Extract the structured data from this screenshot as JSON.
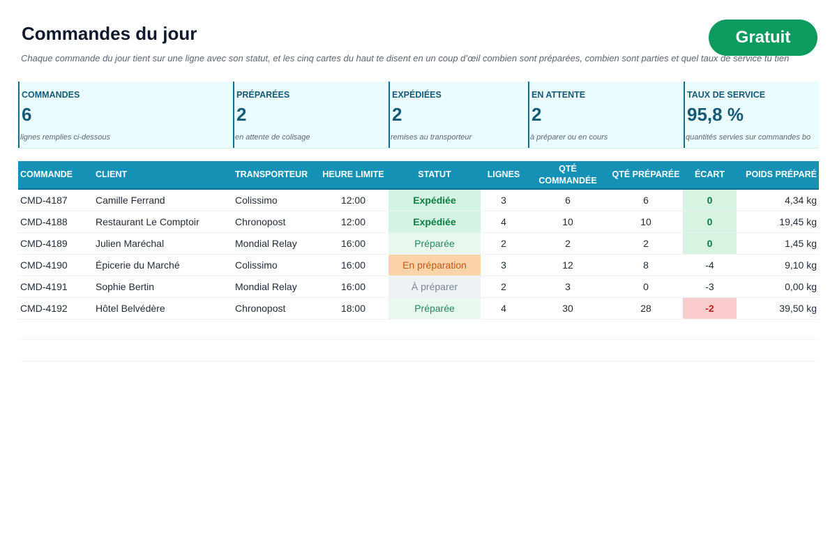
{
  "header": {
    "title": "Commandes du jour",
    "subtitle": "Chaque commande du jour tient sur une ligne avec son statut, et les cinq cartes du haut te disent en un coup d’œil combien sont préparées, combien sont parties et quel taux de service tu tien",
    "badge": "Gratuit"
  },
  "cards": [
    {
      "label": "COMMANDES",
      "value": "6",
      "note": "lignes remplies ci-dessous"
    },
    {
      "label": "PRÉPARÉES",
      "value": "2",
      "note": "en attente de colisage"
    },
    {
      "label": "EXPÉDIÉES",
      "value": "2",
      "note": "remises au transporteur"
    },
    {
      "label": "EN ATTENTE",
      "value": "2",
      "note": "à préparer ou en cours"
    },
    {
      "label": "TAUX DE SERVICE",
      "value": "95,8 %",
      "note": "quantités servies sur commandes bo"
    }
  ],
  "table": {
    "headers": [
      "COMMANDE",
      "CLIENT",
      "TRANSPORTEUR",
      "HEURE LIMITE",
      "STATUT",
      "LIGNES",
      "QTÉ COMMANDÉE",
      "QTÉ PRÉPARÉE",
      "ÉCART",
      "POIDS PRÉPARÉ"
    ],
    "rows": [
      {
        "commande": "CMD-4187",
        "client": "Camille Ferrand",
        "transporteur": "Colissimo",
        "heure": "12:00",
        "statut": "Expédiée",
        "lignes": "3",
        "qte_cmd": "6",
        "qte_prep": "6",
        "ecart": "0",
        "poids": "4,34 kg"
      },
      {
        "commande": "CMD-4188",
        "client": "Restaurant Le Comptoir",
        "transporteur": "Chronopost",
        "heure": "12:00",
        "statut": "Expédiée",
        "lignes": "4",
        "qte_cmd": "10",
        "qte_prep": "10",
        "ecart": "0",
        "poids": "19,45 kg"
      },
      {
        "commande": "CMD-4189",
        "client": "Julien Maréchal",
        "transporteur": "Mondial Relay",
        "heure": "16:00",
        "statut": "Préparée",
        "lignes": "2",
        "qte_cmd": "2",
        "qte_prep": "2",
        "ecart": "0",
        "poids": "1,45 kg"
      },
      {
        "commande": "CMD-4190",
        "client": "Épicerie du Marché",
        "transporteur": "Colissimo",
        "heure": "16:00",
        "statut": "En préparation",
        "lignes": "3",
        "qte_cmd": "12",
        "qte_prep": "8",
        "ecart": "-4",
        "poids": "9,10 kg"
      },
      {
        "commande": "CMD-4191",
        "client": "Sophie Bertin",
        "transporteur": "Mondial Relay",
        "heure": "16:00",
        "statut": "À préparer",
        "lignes": "2",
        "qte_cmd": "3",
        "qte_prep": "0",
        "ecart": "-3",
        "poids": "0,00 kg"
      },
      {
        "commande": "CMD-4192",
        "client": "Hôtel Belvédère",
        "transporteur": "Chronopost",
        "heure": "18:00",
        "statut": "Préparée",
        "lignes": "4",
        "qte_cmd": "30",
        "qte_prep": "28",
        "ecart": "-2",
        "poids": "39,50 kg"
      }
    ]
  },
  "colors": {
    "header_bg": "#1591b6",
    "badge_bg": "#0c9b5e",
    "card_bg": "#eafcfd",
    "accent_text": "#155a76",
    "status_shipped": "#d3f4e3",
    "status_prepared": "#e8f8ef",
    "status_in_progress": "#fbd3a9",
    "status_to_prepare": "#eef2f6",
    "gap_negative": "#f9cdcd"
  }
}
